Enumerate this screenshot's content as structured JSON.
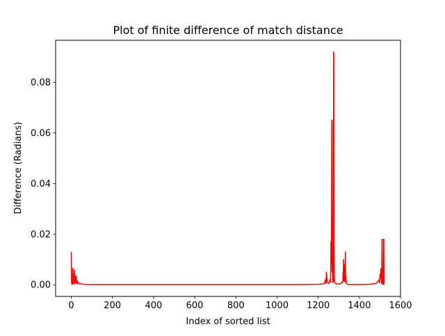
{
  "chart_data": {
    "type": "line",
    "title": "Plot of finite difference of match distance",
    "xlabel": "Index of sorted list",
    "ylabel": "Difference (Radians)",
    "xlim": [
      -76,
      1600
    ],
    "ylim": [
      -0.0046,
      0.0966
    ],
    "xticks": [
      0,
      200,
      400,
      600,
      800,
      1000,
      1200,
      1400,
      1600
    ],
    "xtick_labels": [
      "0",
      "200",
      "400",
      "600",
      "800",
      "1000",
      "1200",
      "1400",
      "1600"
    ],
    "yticks": [
      0.0,
      0.02,
      0.04,
      0.06,
      0.08
    ],
    "ytick_labels": [
      "0.00",
      "0.02",
      "0.04",
      "0.06",
      "0.08"
    ],
    "grid": false,
    "line_color": "#ff0000",
    "series": [
      {
        "x": [
          0,
          1,
          2,
          3,
          4,
          5,
          6,
          7,
          8,
          9,
          10,
          11,
          12,
          13,
          14,
          15,
          16,
          17,
          18,
          19,
          20,
          22,
          24,
          26,
          28,
          30,
          35,
          40,
          50,
          60,
          80,
          100,
          200,
          300,
          400,
          500,
          600,
          700,
          800,
          900,
          1000,
          1100,
          1200,
          1220,
          1230,
          1235,
          1238,
          1240,
          1242,
          1245,
          1250,
          1255,
          1258,
          1260,
          1262,
          1264,
          1265,
          1266,
          1267,
          1268,
          1269,
          1270,
          1271,
          1272,
          1273,
          1274,
          1275,
          1276,
          1277,
          1278,
          1279,
          1280,
          1282,
          1285,
          1290,
          1300,
          1310,
          1315,
          1318,
          1320,
          1321,
          1322,
          1323,
          1324,
          1325,
          1326,
          1327,
          1328,
          1329,
          1330,
          1331,
          1332,
          1333,
          1334,
          1335,
          1336,
          1337,
          1338,
          1340,
          1342,
          1345,
          1350,
          1360,
          1380,
          1400,
          1450,
          1480,
          1490,
          1495,
          1498,
          1500,
          1502,
          1503,
          1504,
          1505,
          1506,
          1507,
          1508,
          1509,
          1510,
          1511,
          1512,
          1513,
          1514,
          1515,
          1516,
          1517,
          1518,
          1519,
          1520,
          1521
        ],
        "y": [
          0.013,
          0.002,
          0.0005,
          0.0003,
          0.0002,
          0.0005,
          0.0002,
          0.0065,
          0.003,
          0.0015,
          0.002,
          0.0005,
          0.0045,
          0.001,
          0.003,
          0.006,
          0.004,
          0.0008,
          0.0003,
          0.0035,
          0.0007,
          0.0015,
          0.0035,
          0.001,
          0.0004,
          0.0015,
          0.0004,
          0.0005,
          0.0003,
          0.0002,
          0.0001,
          0.0001,
          0.0001,
          0.0001,
          0.0001,
          0.0001,
          0.0001,
          0.0001,
          0.0001,
          0.0001,
          0.0001,
          0.0001,
          0.0002,
          0.0003,
          0.0006,
          0.002,
          0.0005,
          0.005,
          0.003,
          0.001,
          0.0005,
          0.0012,
          0.0022,
          0.0008,
          0.017,
          0.008,
          0.03,
          0.065,
          0.005,
          0.065,
          0.01,
          0.002,
          0.001,
          0.0008,
          0.0015,
          0.001,
          0.092,
          0.091,
          0.015,
          0.004,
          0.002,
          0.0015,
          0.0008,
          0.0004,
          0.0003,
          0.0003,
          0.0005,
          0.001,
          0.0008,
          0.0015,
          0.005,
          0.0025,
          0.01,
          0.006,
          0.0015,
          0.008,
          0.0035,
          0.0025,
          0.0065,
          0.0025,
          0.001,
          0.013,
          0.0035,
          0.002,
          0.0035,
          0.0012,
          0.0008,
          0.0005,
          0.0003,
          0.0002,
          0.0002,
          0.0001,
          0.0001,
          0.0001,
          0.0001,
          0.0002,
          0.0005,
          0.0012,
          0.002,
          0.0008,
          0.004,
          0.0025,
          0.0035,
          0.006,
          0.0025,
          0.0065,
          0.002,
          0.0008,
          0.0004,
          0.018,
          0.018,
          0.0004,
          0.0006,
          0.0002,
          0.0003,
          0.0002,
          0.002,
          0.018,
          0.018,
          0.0004,
          0.0002
        ]
      }
    ]
  }
}
